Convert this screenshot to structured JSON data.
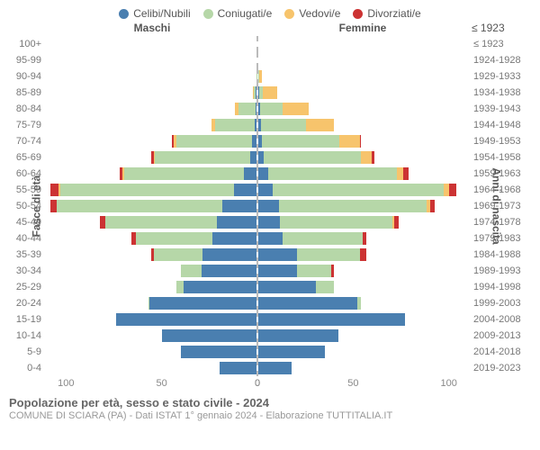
{
  "legend": [
    {
      "label": "Celibi/Nubili",
      "color": "#4a7fb0"
    },
    {
      "label": "Coniugati/e",
      "color": "#b6d7a8"
    },
    {
      "label": "Vedovi/e",
      "color": "#f7c46c"
    },
    {
      "label": "Divorziati/e",
      "color": "#cc3333"
    }
  ],
  "headers": {
    "male": "Maschi",
    "female": "Femmine",
    "right_top": "≤ 1923"
  },
  "axis": {
    "ylabel_left": "Fasce di età",
    "ylabel_right": "Anni di nascita",
    "xmax": 110,
    "xticks": [
      0,
      50,
      100
    ],
    "grid_color": "#eeeeee"
  },
  "rows": [
    {
      "age": "100+",
      "year": "≤ 1923",
      "m": [
        0,
        0,
        0,
        0
      ],
      "f": [
        0,
        0,
        0,
        0
      ]
    },
    {
      "age": "95-99",
      "year": "1924-1928",
      "m": [
        0,
        0,
        0,
        0
      ],
      "f": [
        0,
        0,
        1,
        0
      ]
    },
    {
      "age": "90-94",
      "year": "1929-1933",
      "m": [
        0,
        2,
        3,
        0
      ],
      "f": [
        1,
        2,
        12,
        0
      ]
    },
    {
      "age": "85-89",
      "year": "1934-1938",
      "m": [
        2,
        8,
        4,
        0
      ],
      "f": [
        2,
        6,
        25,
        0
      ]
    },
    {
      "age": "80-84",
      "year": "1939-1943",
      "m": [
        2,
        28,
        5,
        0
      ],
      "f": [
        2,
        24,
        28,
        0
      ]
    },
    {
      "age": "75-79",
      "year": "1944-1948",
      "m": [
        2,
        45,
        4,
        0
      ],
      "f": [
        2,
        40,
        24,
        0
      ]
    },
    {
      "age": "70-74",
      "year": "1949-1953",
      "m": [
        4,
        62,
        2,
        2
      ],
      "f": [
        3,
        58,
        15,
        1
      ]
    },
    {
      "age": "65-69",
      "year": "1954-1958",
      "m": [
        5,
        70,
        1,
        2
      ],
      "f": [
        4,
        68,
        8,
        2
      ]
    },
    {
      "age": "60-64",
      "year": "1959-1963",
      "m": [
        8,
        78,
        1,
        2
      ],
      "f": [
        6,
        80,
        4,
        3
      ]
    },
    {
      "age": "55-59",
      "year": "1964-1968",
      "m": [
        12,
        92,
        1,
        4
      ],
      "f": [
        8,
        92,
        3,
        4
      ]
    },
    {
      "age": "50-54",
      "year": "1969-1973",
      "m": [
        18,
        88,
        0,
        3
      ],
      "f": [
        12,
        84,
        2,
        3
      ]
    },
    {
      "age": "45-49",
      "year": "1974-1978",
      "m": [
        24,
        68,
        0,
        3
      ],
      "f": [
        14,
        72,
        1,
        3
      ]
    },
    {
      "age": "40-44",
      "year": "1979-1983",
      "m": [
        30,
        52,
        0,
        3
      ],
      "f": [
        18,
        58,
        0,
        3
      ]
    },
    {
      "age": "35-39",
      "year": "1984-1988",
      "m": [
        40,
        36,
        0,
        2
      ],
      "f": [
        28,
        46,
        0,
        5
      ]
    },
    {
      "age": "30-34",
      "year": "1989-1993",
      "m": [
        48,
        18,
        0,
        0
      ],
      "f": [
        34,
        30,
        0,
        2
      ]
    },
    {
      "age": "25-29",
      "year": "1994-1998",
      "m": [
        62,
        6,
        0,
        0
      ],
      "f": [
        50,
        16,
        0,
        0
      ]
    },
    {
      "age": "20-24",
      "year": "1999-2003",
      "m": [
        78,
        1,
        0,
        0
      ],
      "f": [
        74,
        3,
        0,
        0
      ]
    },
    {
      "age": "15-19",
      "year": "2004-2008",
      "m": [
        90,
        0,
        0,
        0
      ],
      "f": [
        92,
        0,
        0,
        0
      ]
    },
    {
      "age": "10-14",
      "year": "2009-2013",
      "m": [
        74,
        0,
        0,
        0
      ],
      "f": [
        68,
        0,
        0,
        0
      ]
    },
    {
      "age": "5-9",
      "year": "2014-2018",
      "m": [
        66,
        0,
        0,
        0
      ],
      "f": [
        62,
        0,
        0,
        0
      ]
    },
    {
      "age": "0-4",
      "year": "2019-2023",
      "m": [
        46,
        0,
        0,
        0
      ],
      "f": [
        44,
        0,
        0,
        0
      ]
    }
  ],
  "footer": {
    "title": "Popolazione per età, sesso e stato civile - 2024",
    "subtitle": "COMUNE DI SCIARA (PA) - Dati ISTAT 1° gennaio 2024 - Elaborazione TUTTITALIA.IT"
  }
}
